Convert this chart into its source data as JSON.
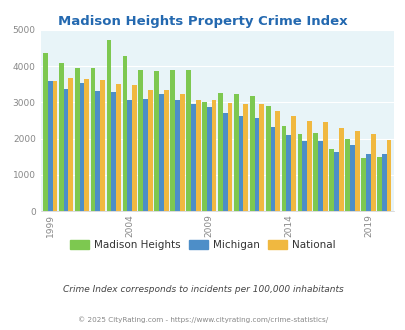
{
  "title": "Madison Heights Property Crime Index",
  "title_color": "#2469b0",
  "years": [
    1999,
    2000,
    2001,
    2002,
    2003,
    2004,
    2005,
    2006,
    2007,
    2008,
    2009,
    2010,
    2011,
    2012,
    2013,
    2014,
    2015,
    2016,
    2017,
    2018,
    2019,
    2020
  ],
  "madison_heights": [
    4350,
    4080,
    3950,
    3940,
    4720,
    4280,
    3900,
    3870,
    3890,
    3880,
    3000,
    3260,
    3240,
    3170,
    2900,
    2350,
    2130,
    2150,
    1700,
    2000,
    1470,
    1500
  ],
  "michigan": [
    3580,
    3360,
    3540,
    3300,
    3280,
    3060,
    3090,
    3220,
    3060,
    2960,
    2870,
    2700,
    2620,
    2570,
    2330,
    2090,
    1930,
    1940,
    1640,
    1830,
    1570,
    1580
  ],
  "national": [
    3590,
    3660,
    3650,
    3610,
    3510,
    3470,
    3340,
    3340,
    3220,
    3060,
    3060,
    2980,
    2940,
    2960,
    2750,
    2620,
    2490,
    2460,
    2290,
    2200,
    2120,
    1950
  ],
  "bar_colors": [
    "#7dc850",
    "#4d8ec8",
    "#f0b840"
  ],
  "bg_color": "#e8f4f8",
  "ylim": [
    0,
    5000
  ],
  "yticks": [
    0,
    1000,
    2000,
    3000,
    4000,
    5000
  ],
  "xtick_years": [
    1999,
    2004,
    2009,
    2014,
    2019
  ],
  "legend_labels": [
    "Madison Heights",
    "Michigan",
    "National"
  ],
  "subtitle": "Crime Index corresponds to incidents per 100,000 inhabitants",
  "footer": "© 2025 CityRating.com - https://www.cityrating.com/crime-statistics/",
  "subtitle_color": "#444444",
  "footer_color": "#888888",
  "grid_color": "#ffffff"
}
